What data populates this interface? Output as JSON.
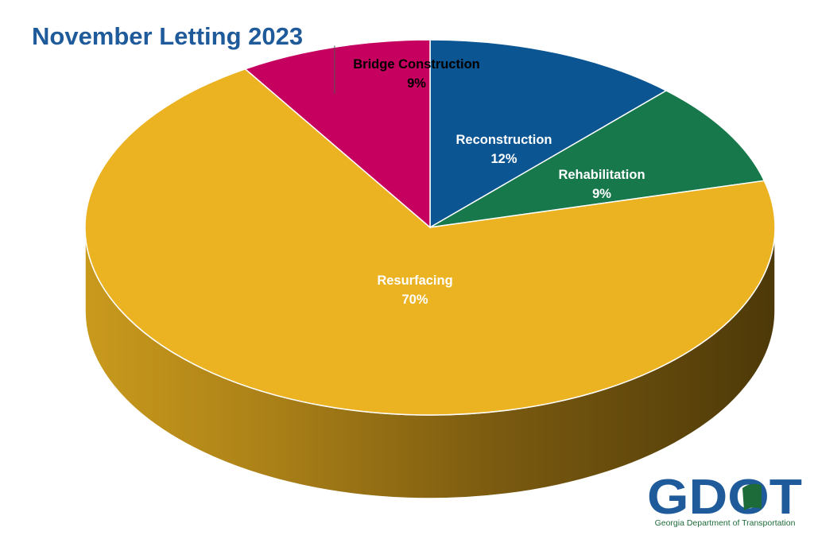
{
  "title": "November Letting 2023",
  "chart_data": {
    "type": "pie",
    "title": "November Letting 2023",
    "slices": [
      {
        "label": "Reconstruction",
        "percent_label": "12%",
        "value": 12,
        "color": "#0a5592"
      },
      {
        "label": "Rehabilitation",
        "percent_label": "9%",
        "value": 9,
        "color": "#17794b"
      },
      {
        "label": "Resurfacing",
        "percent_label": "70%",
        "value": 70,
        "color": "#ebb222"
      },
      {
        "label": "Bridge Construction",
        "percent_label": "9%",
        "value": 9,
        "color": "#c5005f"
      }
    ]
  },
  "logo": {
    "wordmark": "GDOT",
    "tagline": "Georgia Department of Transportation",
    "colors": {
      "blue": "#1f5b9a",
      "green": "#1e6b3a"
    }
  }
}
